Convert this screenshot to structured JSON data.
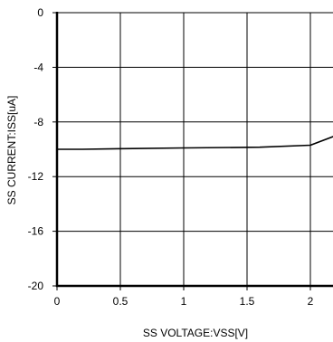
{
  "chart_data": {
    "type": "line",
    "title": "",
    "xlabel": "SS VOLTAGE:VSS[V]",
    "ylabel": "SS CURRENT:ISS[uA]",
    "xlim": [
      0,
      2.2
    ],
    "ylim": [
      -20,
      0
    ],
    "grid": true,
    "x_ticks": [
      {
        "value": 0,
        "label": "0"
      },
      {
        "value": 0.5,
        "label": "0.5"
      },
      {
        "value": 1,
        "label": "1"
      },
      {
        "value": 1.5,
        "label": "1.5"
      },
      {
        "value": 2,
        "label": "2"
      }
    ],
    "y_ticks": [
      {
        "value": 0,
        "label": "0"
      },
      {
        "value": -4,
        "label": "-4"
      },
      {
        "value": -8,
        "label": "-8"
      },
      {
        "value": -12,
        "label": "-12"
      },
      {
        "value": -16,
        "label": "-16"
      },
      {
        "value": -20,
        "label": "-20"
      }
    ],
    "series": [
      {
        "x": [
          0,
          0.2,
          0.6,
          1.0,
          1.6,
          2.0,
          2.2
        ],
        "y": [
          -10.0,
          -10.0,
          -9.95,
          -9.9,
          -9.85,
          -9.7,
          -9.0
        ]
      }
    ],
    "colors": {
      "line": "#000000",
      "grid": "#000000",
      "axis": "#000000"
    }
  }
}
